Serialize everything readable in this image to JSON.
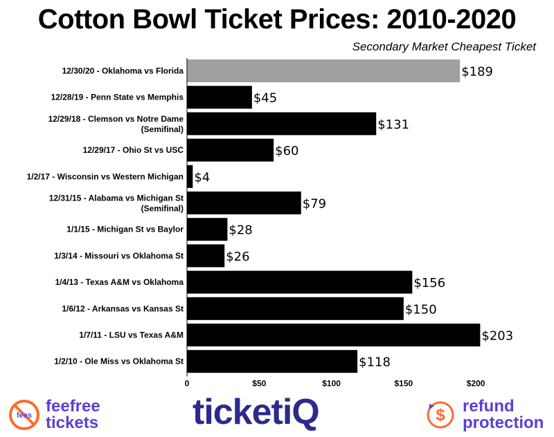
{
  "chart_data": {
    "type": "bar",
    "orientation": "horizontal",
    "title": "Cotton Bowl Ticket Prices: 2010-2020",
    "subtitle": "Secondary Market Cheapest Ticket",
    "categories": [
      [
        "12/30/20 - Oklahoma vs Florida"
      ],
      [
        "12/28/19 - Penn State vs Memphis"
      ],
      [
        "12/29/18 - Clemson vs Notre Dame",
        "(Semifinal)"
      ],
      [
        "12/29/17 - Ohio St vs USC"
      ],
      [
        "1/2/17 - Wisconsin vs Western Michigan"
      ],
      [
        "12/31/15 - Alabama vs Michigan St",
        "(Semifinal)"
      ],
      [
        "1/1/15 - Michigan St vs Baylor"
      ],
      [
        "1/3/14 - Missouri vs Oklahoma St"
      ],
      [
        "1/4/13 - Texas A&M vs Oklahoma"
      ],
      [
        "1/6/12 - Arkansas vs Kansas St"
      ],
      [
        "1/7/11 - LSU vs Texas A&M"
      ],
      [
        "1/2/10 - Ole Miss vs Oklahoma St"
      ]
    ],
    "values": [
      189,
      45,
      131,
      60,
      4,
      79,
      28,
      26,
      156,
      150,
      203,
      118
    ],
    "value_labels": [
      "$189",
      "$45",
      "$131",
      "$60",
      "$4",
      "$79",
      "$28",
      "$26",
      "$156",
      "$150",
      "$203",
      "$118"
    ],
    "bar_colors": [
      "#a0a0a0",
      "#000000",
      "#000000",
      "#000000",
      "#000000",
      "#000000",
      "#000000",
      "#000000",
      "#000000",
      "#000000",
      "#000000",
      "#000000"
    ],
    "xlim": [
      0,
      210
    ],
    "x_ticks": [
      0,
      50,
      100,
      150,
      200
    ],
    "x_tick_labels": [
      "0",
      "$50",
      "$100",
      "$150",
      "$200"
    ],
    "grid": false,
    "legend": "none"
  },
  "footer": {
    "left_brand_line1": "feefree",
    "left_brand_line2": "tickets",
    "left_icon_text": "fees",
    "center_brand": "ticketiQ",
    "right_brand_line1": "refund",
    "right_brand_line2": "protection",
    "brand_purple": "#5b3fd6",
    "brand_navy": "#2d2a8c",
    "brand_orange": "#ff6a2b"
  }
}
